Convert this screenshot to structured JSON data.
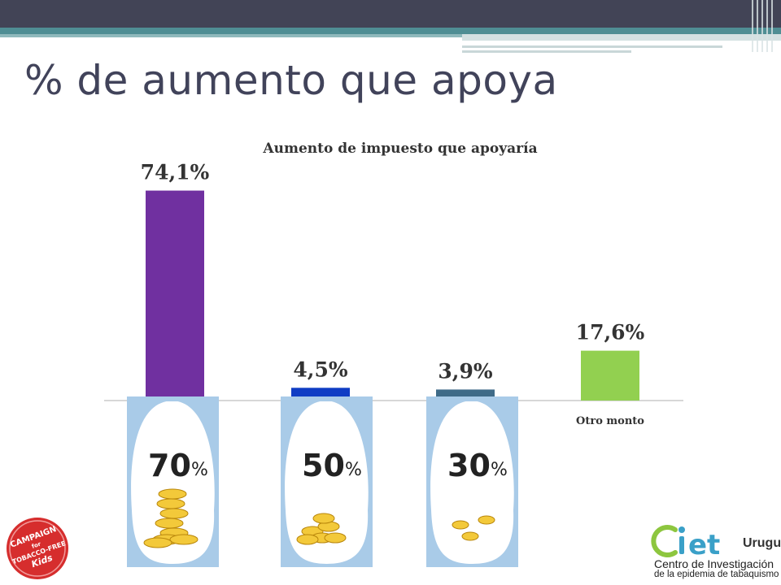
{
  "slide": {
    "title": "% de aumento que apoya",
    "colors": {
      "topbar": "#424456",
      "accent": "#4f8e94",
      "title_text": "#41435a"
    }
  },
  "chart_data": {
    "type": "bar",
    "title": "Aumento de impuesto que apoyaría",
    "categories": [
      "70%",
      "50%",
      "30%",
      "Otro monto"
    ],
    "values": [
      74.1,
      4.5,
      3.9,
      17.6
    ],
    "value_labels": [
      "74,1%",
      "4,5%",
      "3,9%",
      "17,6%"
    ],
    "bar_colors": [
      "#7030a0",
      "#0f3cc4",
      "#3f6b88",
      "#92d050"
    ],
    "xlabel": "",
    "ylabel": "",
    "ylim": [
      0,
      80
    ],
    "grid": false,
    "legend": "none",
    "category_images": [
      {
        "number": "70",
        "unit": "%",
        "coins": "stack of coins"
      },
      {
        "number": "50",
        "unit": "%",
        "coins": "pile of coins"
      },
      {
        "number": "30",
        "unit": "%",
        "coins": "few coins"
      }
    ],
    "text_category_label": "Otro monto"
  },
  "logos": {
    "campaign": {
      "name": "campaign-for-tobacco-free-kids-logo",
      "text": "CAMPAIGN for TOBACCO-FREE Kids",
      "color": "#d62d2d"
    },
    "ciet": {
      "name": "ciet-uruguay-logo",
      "text": "ciet",
      "suffix": "Uruguay",
      "line1": "Centro de Investigación",
      "line2": "de la epidemia de tabaquismo",
      "colors": {
        "c": "#8dc63f",
        "i": "#3aa0c8",
        "e": "#3aa0c8",
        "t": "#3aa0c8"
      }
    }
  }
}
